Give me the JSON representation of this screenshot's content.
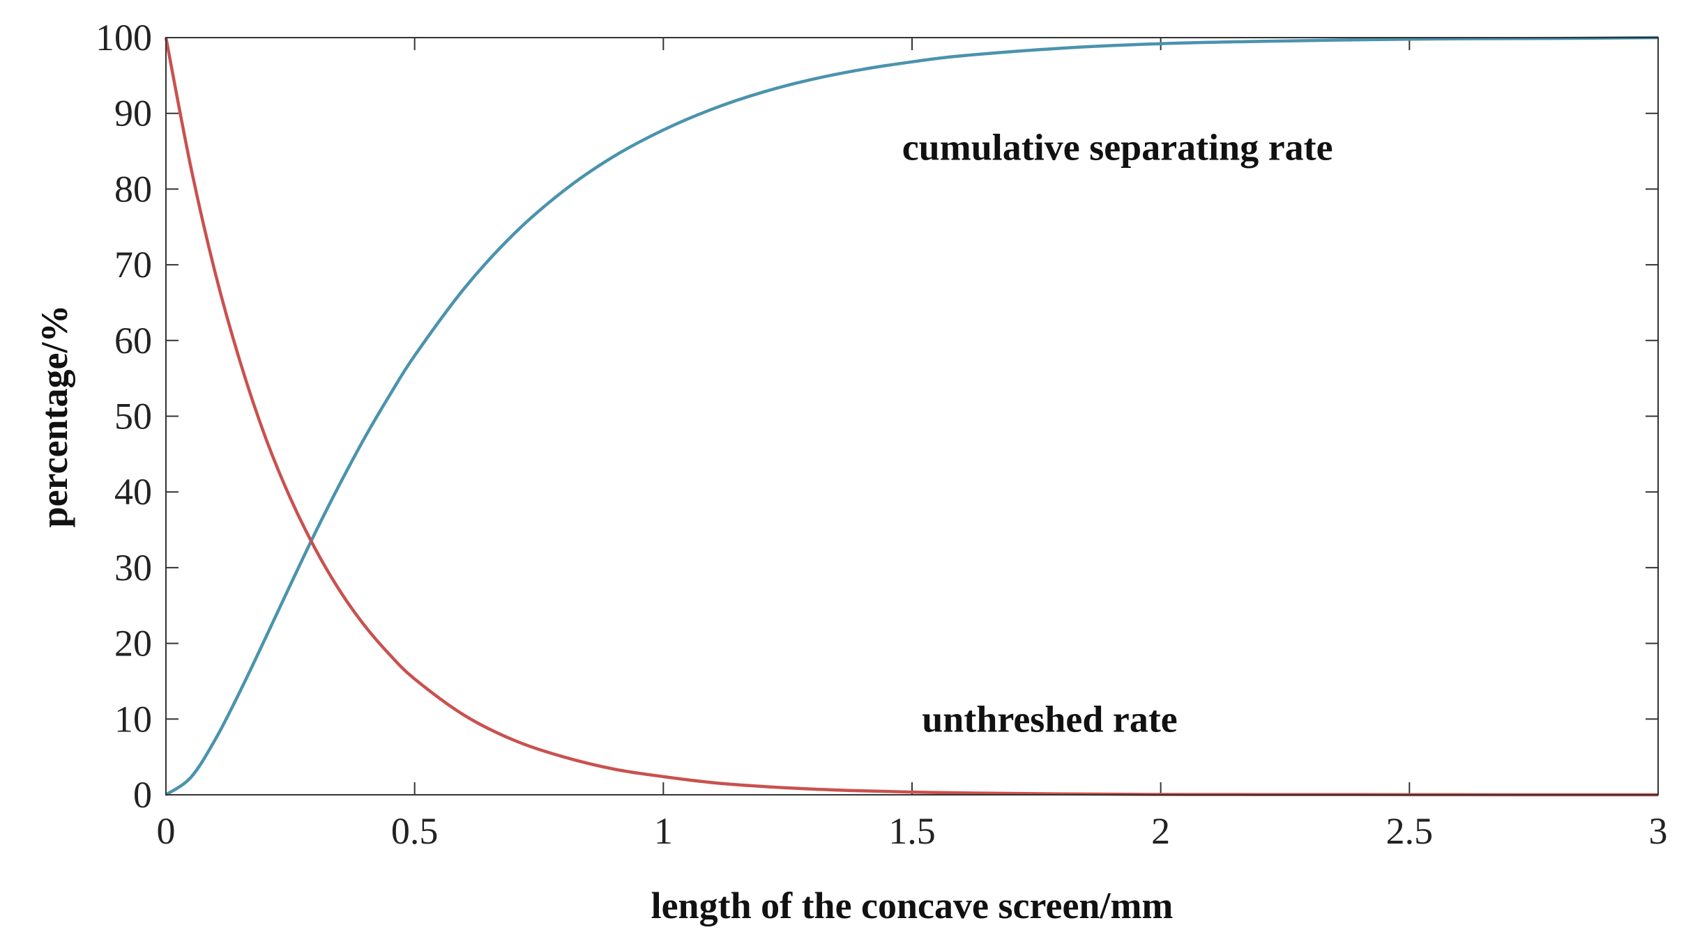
{
  "chart_data": {
    "type": "line",
    "title": "",
    "xlabel": "length of the concave screen/mm",
    "ylabel": "percentage/%",
    "xlim": [
      0,
      3
    ],
    "ylim": [
      0,
      100
    ],
    "xticks": [
      0,
      0.5,
      1,
      1.5,
      2,
      2.5,
      3
    ],
    "xtick_labels": [
      "0",
      "0.5",
      "1",
      "1.5",
      "2",
      "2.5",
      "3"
    ],
    "yticks": [
      0,
      10,
      20,
      30,
      40,
      50,
      60,
      70,
      80,
      90,
      100
    ],
    "ytick_labels": [
      "0",
      "10",
      "20",
      "30",
      "40",
      "50",
      "60",
      "70",
      "80",
      "90",
      "100"
    ],
    "grid": false,
    "x": [
      0,
      0.05,
      0.1,
      0.15,
      0.2,
      0.25,
      0.3,
      0.35,
      0.4,
      0.45,
      0.5,
      0.6,
      0.7,
      0.8,
      0.9,
      1.0,
      1.1,
      1.2,
      1.3,
      1.4,
      1.5,
      1.6,
      1.8,
      2.0,
      2.2,
      2.5,
      2.8,
      3.0
    ],
    "series": [
      {
        "name": "cumulative separating rate",
        "color": "#4a93ad",
        "values": [
          0,
          2.3,
          7.4,
          13.8,
          20.7,
          27.7,
          34.6,
          41.1,
          47.2,
          52.8,
          58.0,
          66.9,
          74.1,
          79.8,
          84.3,
          87.8,
          90.6,
          92.8,
          94.5,
          95.8,
          96.8,
          97.6,
          98.6,
          99.2,
          99.5,
          99.8,
          99.9,
          100
        ]
      },
      {
        "name": "unthreshed rate",
        "color": "#c9514e",
        "values": [
          100,
          82.9,
          68.7,
          57.0,
          47.2,
          39.2,
          32.5,
          26.9,
          22.3,
          18.5,
          15.3,
          10.5,
          7.2,
          5.0,
          3.4,
          2.4,
          1.6,
          1.1,
          0.76,
          0.52,
          0.36,
          0.25,
          0.12,
          0.05,
          0.03,
          0.01,
          0.0,
          0.0
        ]
      }
    ],
    "annotations": [
      {
        "text": "cumulative separating rate",
        "x": 1.48,
        "y": 85.5
      },
      {
        "text": "unthreshed rate",
        "x": 1.52,
        "y": 10
      }
    ]
  }
}
